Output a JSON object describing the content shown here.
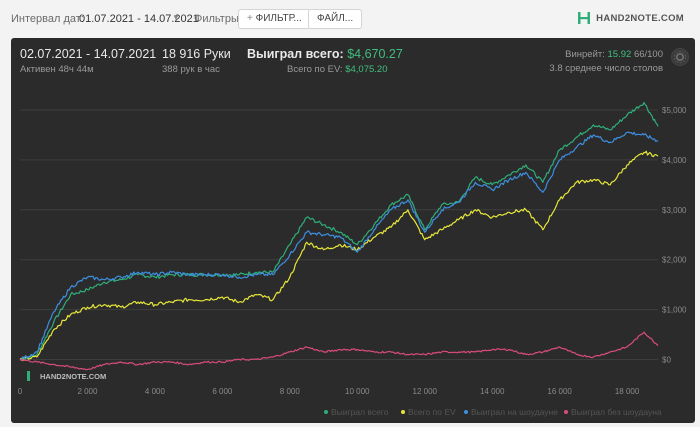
{
  "toolbar": {
    "interval_label": "Интервал дат:",
    "interval_value": "01.07.2021 - 14.07.2021",
    "filters_label": "Фильтры:",
    "filter_button": "ФИЛЬТР...",
    "file_button": "ФАЙЛ..."
  },
  "logo_text": "HAND2NOTE.COM",
  "header": {
    "date_range": "02.07.2021 - 14.07.2021",
    "active": "Активен 48ч 44м",
    "hands": "18 916 Руки",
    "hands_per_hour": "388 рук в час",
    "won_label": "Выиграл всего:",
    "won_value": "$4,670.27",
    "ev_label": "Всего по EV:",
    "ev_value": "$4,075.20",
    "winrate_label": "Винрейт:",
    "winrate_value": "15.92",
    "winrate_hands": "66/100",
    "tables": "3.8 среднее число столов"
  },
  "colors": {
    "won": "#2fae7a",
    "ev": "#e6e63a",
    "showdown": "#3d8fe0",
    "non_showdown": "#d94c7a"
  },
  "chart_data": {
    "type": "line",
    "watermark": "HAND2NOTE.COM",
    "x_ticks": [
      "0",
      "2 000",
      "4 000",
      "6 000",
      "8 000",
      "10 000",
      "12 000",
      "14 000",
      "16 000",
      "18 000"
    ],
    "x_tick_values": [
      0,
      2000,
      4000,
      6000,
      8000,
      10000,
      12000,
      14000,
      16000,
      18000
    ],
    "y_ticks": [
      "$0",
      "$1,000",
      "$2,000",
      "$3,000",
      "$4,000",
      "$5,000"
    ],
    "y_tick_values": [
      0,
      1000,
      2000,
      3000,
      4000,
      5000
    ],
    "xlim": [
      0,
      18916
    ],
    "ylim": [
      -250,
      5400
    ],
    "grid": true,
    "legend_position": "bottom-right",
    "x": [
      0,
      500,
      1000,
      1500,
      2000,
      2500,
      3000,
      3500,
      4000,
      4500,
      5000,
      5500,
      6000,
      6500,
      7000,
      7500,
      8000,
      8500,
      9000,
      9500,
      10000,
      10500,
      11000,
      11500,
      12000,
      12500,
      13000,
      13500,
      14000,
      14500,
      15000,
      15500,
      16000,
      16500,
      17000,
      17500,
      18000,
      18500,
      18916
    ],
    "series": [
      {
        "name": "Выиграл всего",
        "color": "#2fae7a",
        "values": [
          0,
          100,
          750,
          1300,
          1400,
          1550,
          1600,
          1700,
          1650,
          1700,
          1700,
          1700,
          1700,
          1700,
          1750,
          1750,
          2300,
          2850,
          2700,
          2550,
          2300,
          2700,
          3100,
          3300,
          2600,
          3100,
          3150,
          3650,
          3500,
          3700,
          3900,
          3550,
          4200,
          4450,
          4700,
          4600,
          4900,
          5150,
          4670
        ]
      },
      {
        "name": "Всего по EV",
        "color": "#e6e63a",
        "values": [
          0,
          50,
          600,
          900,
          1050,
          1100,
          1050,
          1150,
          1100,
          1150,
          1200,
          1200,
          1250,
          1150,
          1300,
          1200,
          1650,
          2350,
          2200,
          2300,
          2200,
          2450,
          2650,
          3000,
          2400,
          2600,
          2800,
          3000,
          2850,
          2950,
          3000,
          2600,
          3200,
          3550,
          3600,
          3500,
          3900,
          4150,
          4075
        ]
      },
      {
        "name": "Выиграл на шоудауне",
        "color": "#3d8fe0",
        "values": [
          0,
          150,
          950,
          1450,
          1650,
          1600,
          1650,
          1750,
          1700,
          1750,
          1700,
          1700,
          1700,
          1650,
          1700,
          1700,
          2100,
          2550,
          2500,
          2450,
          2150,
          2600,
          3000,
          3200,
          2550,
          3000,
          3150,
          3550,
          3400,
          3600,
          3750,
          3350,
          4000,
          4250,
          4500,
          4350,
          4550,
          4500,
          4380
        ]
      },
      {
        "name": "Выиграл без шоудауна",
        "color": "#d94c7a",
        "values": [
          0,
          -50,
          -100,
          -150,
          -200,
          -100,
          -50,
          -100,
          -50,
          -50,
          -100,
          -50,
          -50,
          0,
          0,
          50,
          150,
          250,
          150,
          200,
          200,
          150,
          150,
          100,
          100,
          150,
          150,
          150,
          200,
          200,
          100,
          150,
          250,
          100,
          50,
          150,
          250,
          550,
          280
        ]
      }
    ]
  }
}
